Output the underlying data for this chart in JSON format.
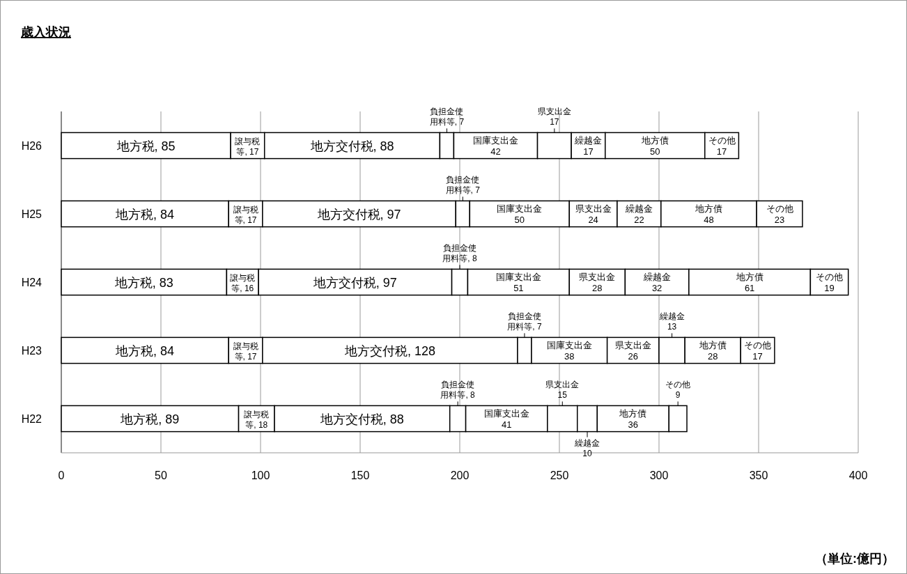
{
  "chart_data": {
    "type": "bar",
    "orientation": "horizontal",
    "stacked": true,
    "title": "歳入状況",
    "categories": [
      "H26",
      "H25",
      "H24",
      "H23",
      "H22"
    ],
    "series": [
      {
        "color": "#ffffff",
        "values": [
          85,
          84,
          83,
          84,
          89
        ],
        "value_labels": [
          "地方税, 85",
          "地方税, 84",
          "地方税, 83",
          "地方税, 84",
          "地方税, 89"
        ]
      },
      {
        "color": "#ffffff",
        "values": [
          17,
          17,
          16,
          17,
          18
        ],
        "value_labels": [
          "譲与税等, 17",
          "譲与税等, 17",
          "譲与税等, 16",
          "譲与税等, 17",
          "譲与税等, 18"
        ]
      },
      {
        "color": "#ffffff",
        "values": [
          88,
          97,
          97,
          128,
          88
        ],
        "value_labels": [
          "地方交付税, 88",
          "地方交付税, 97",
          "地方交付税, 97",
          "地方交付税, 128",
          "地方交付税, 88"
        ]
      },
      {
        "color": "#ffffff",
        "values": [
          7,
          7,
          8,
          7,
          8
        ],
        "value_labels": [
          "負担金使用料等, 7",
          "負担金使用料等, 7",
          "負担金使用料等, 8",
          "負担金使用料等, 7",
          "負担金使用料等, 8"
        ]
      },
      {
        "color": "#ffffff",
        "values": [
          42,
          50,
          51,
          38,
          41
        ],
        "value_labels": [
          "国庫支出金\n42",
          "国庫支出金\n50",
          "国庫支出金\n51",
          "国庫支出金\n38",
          "国庫支出金\n41"
        ]
      },
      {
        "color": "#ffffff",
        "values": [
          17,
          24,
          28,
          26,
          15
        ],
        "value_labels": [
          "県支出金\n17",
          "県支出金\n24",
          "県支出金\n28",
          "県支出金\n26",
          "県支出金\n15"
        ]
      },
      {
        "color": "#ffffff",
        "values": [
          17,
          22,
          32,
          13,
          10
        ],
        "value_labels": [
          "繰越金\n17",
          "繰越金\n22",
          "繰越金\n32",
          "繰越金\n13",
          "繰越金\n10"
        ]
      },
      {
        "color": "#ffffff",
        "values": [
          50,
          48,
          61,
          28,
          36
        ],
        "value_labels": [
          "地方債\n50",
          "地方債\n48",
          "地方債\n61",
          "地方債\n28",
          "地方債\n36"
        ]
      },
      {
        "color": "#ffffff",
        "values": [
          17,
          23,
          19,
          17,
          9
        ],
        "value_labels": [
          "その他\n17",
          "その他\n23",
          "その他\n19",
          "その他\n17",
          "その他\n9"
        ]
      }
    ],
    "xlim": [
      0,
      400
    ],
    "xticks": [
      0,
      50,
      100,
      150,
      200,
      250,
      300,
      350,
      400
    ],
    "grid": "x",
    "annotations": [
      "（単位:億円）"
    ]
  }
}
